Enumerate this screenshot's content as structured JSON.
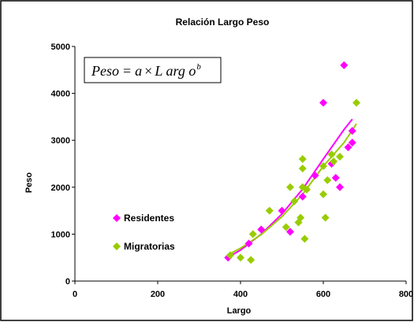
{
  "chart_data": {
    "type": "scatter",
    "title": "Relación Largo Peso",
    "xlabel": "Largo",
    "ylabel": "Peso",
    "xlim": [
      0,
      800
    ],
    "ylim": [
      0,
      5000
    ],
    "x_ticks": [
      "0",
      "200",
      "400",
      "600",
      "800"
    ],
    "y_ticks": [
      "0",
      "1000",
      "2000",
      "3000",
      "4000",
      "5000"
    ],
    "grid": false,
    "legend_position": "left",
    "formula": {
      "lhs": "Peso",
      "eq": "=",
      "a": "a",
      "times": "×",
      "var": "L arg o",
      "exp": "b"
    },
    "series": [
      {
        "name": "Residentes",
        "color": "#ff00ff",
        "marker": "diamond",
        "points": [
          [
            370,
            500
          ],
          [
            420,
            800
          ],
          [
            450,
            1100
          ],
          [
            500,
            1500
          ],
          [
            520,
            1050
          ],
          [
            550,
            1800
          ],
          [
            580,
            2250
          ],
          [
            600,
            3800
          ],
          [
            620,
            2500
          ],
          [
            630,
            2200
          ],
          [
            640,
            2000
          ],
          [
            650,
            4600
          ],
          [
            660,
            2850
          ],
          [
            670,
            3200
          ],
          [
            670,
            2950
          ]
        ],
        "trend": [
          [
            370,
            510
          ],
          [
            400,
            660
          ],
          [
            450,
            1000
          ],
          [
            500,
            1430
          ],
          [
            550,
            1960
          ],
          [
            600,
            2600
          ],
          [
            650,
            3230
          ],
          [
            670,
            3450
          ]
        ]
      },
      {
        "name": "Migratorias",
        "color": "#99cc00",
        "marker": "diamond",
        "points": [
          [
            375,
            550
          ],
          [
            400,
            500
          ],
          [
            425,
            450
          ],
          [
            430,
            1000
          ],
          [
            470,
            1500
          ],
          [
            510,
            1150
          ],
          [
            520,
            2000
          ],
          [
            530,
            1700
          ],
          [
            540,
            1250
          ],
          [
            545,
            1350
          ],
          [
            550,
            2600
          ],
          [
            550,
            2400
          ],
          [
            550,
            2000
          ],
          [
            555,
            900
          ],
          [
            560,
            1950
          ],
          [
            600,
            2450
          ],
          [
            600,
            1850
          ],
          [
            605,
            1350
          ],
          [
            610,
            2150
          ],
          [
            620,
            2700
          ],
          [
            625,
            2550
          ],
          [
            640,
            2650
          ],
          [
            680,
            3800
          ]
        ],
        "trend": [
          [
            370,
            560
          ],
          [
            400,
            700
          ],
          [
            450,
            990
          ],
          [
            500,
            1370
          ],
          [
            550,
            1850
          ],
          [
            600,
            2450
          ],
          [
            650,
            2950
          ],
          [
            680,
            3350
          ]
        ]
      }
    ]
  }
}
